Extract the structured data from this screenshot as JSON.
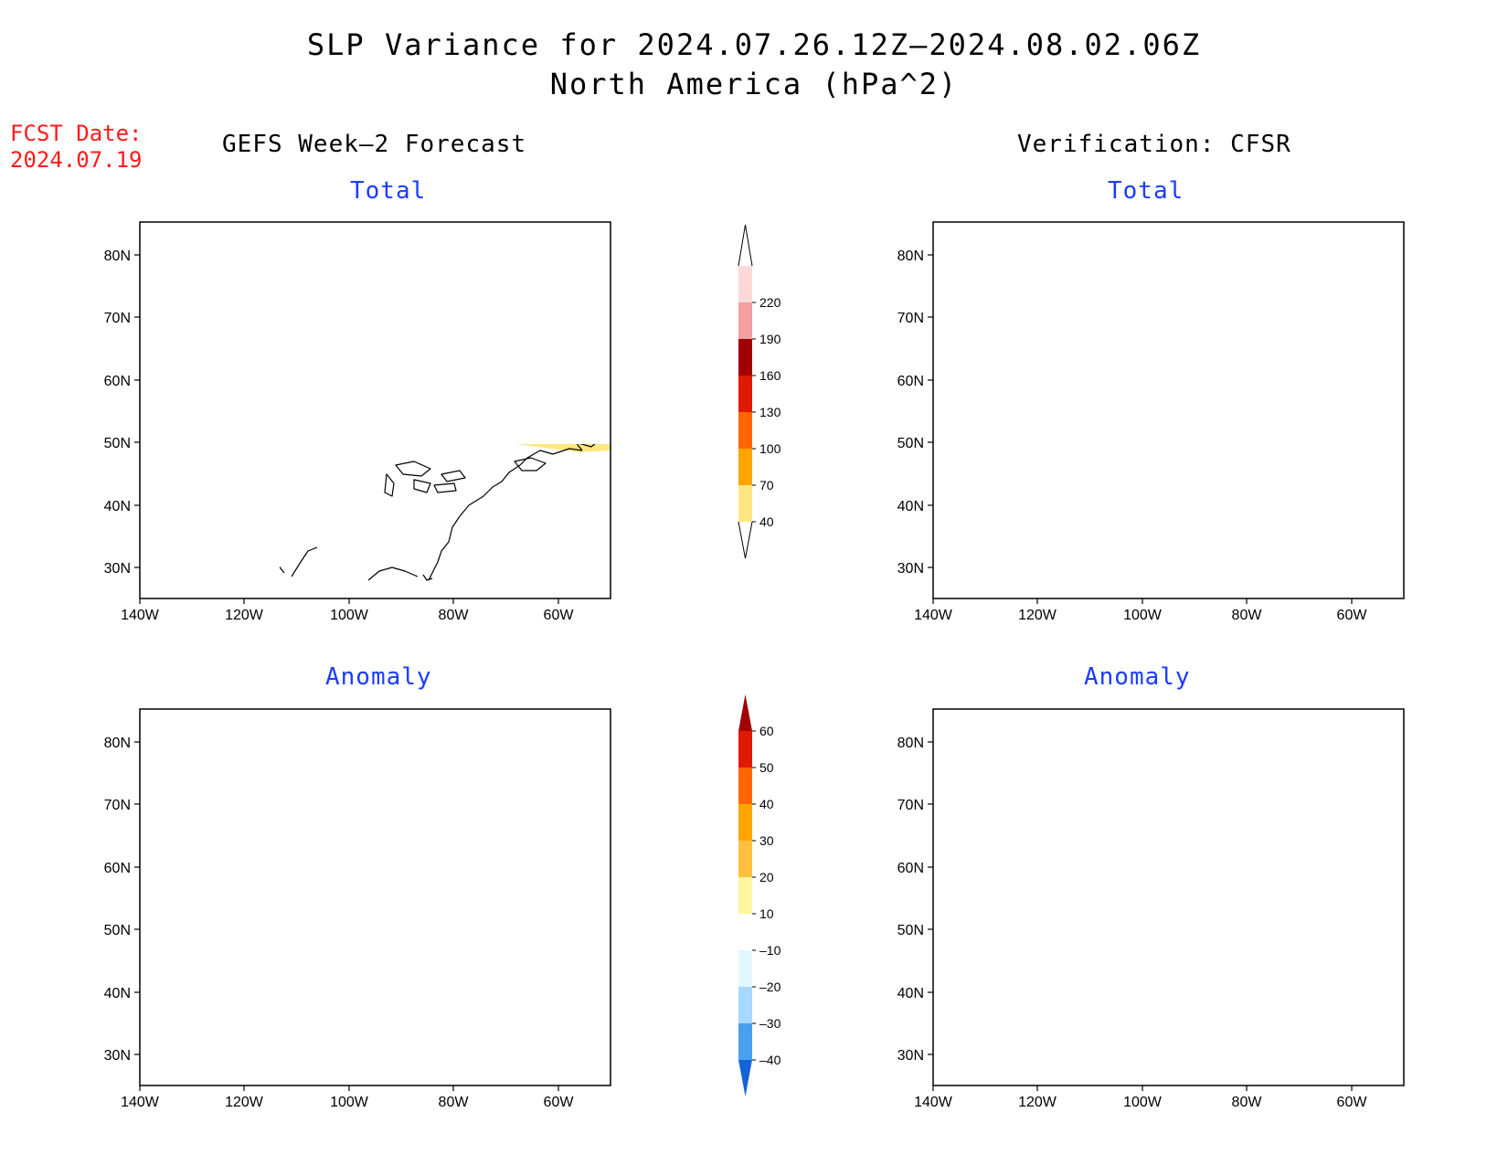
{
  "header": {
    "title_line1": "SLP Variance for 2024.07.26.12Z–2024.08.02.06Z",
    "title_line2": "North America (hPa^2)",
    "fcst_label": "FCST Date:",
    "fcst_date": "2024.07.19",
    "left_column": "GEFS Week–2 Forecast",
    "right_column": "Verification: CFSR"
  },
  "panels": [
    {
      "id": "gefs-total",
      "subtitle": "Total"
    },
    {
      "id": "cfsr-total",
      "subtitle": "Total"
    },
    {
      "id": "gefs-anomaly",
      "subtitle": "Anomaly"
    },
    {
      "id": "cfsr-anomaly",
      "subtitle": "Anomaly"
    }
  ],
  "axes": {
    "lon_ticks": [
      "140W",
      "120W",
      "100W",
      "80W",
      "60W"
    ],
    "lat_ticks": [
      "80N",
      "70N",
      "60N",
      "50N",
      "40N",
      "30N"
    ],
    "lon_range": [
      -140,
      -50
    ],
    "lat_range": [
      25,
      85
    ]
  },
  "colorbars": {
    "total": {
      "labels": [
        "40",
        "70",
        "100",
        "130",
        "160",
        "190",
        "220"
      ],
      "colors": [
        "#ffe680",
        "#ffa500",
        "#ff6600",
        "#e01a00",
        "#a00000",
        "#f2a0a0",
        "#fcd9d9"
      ]
    },
    "anomaly": {
      "labels": [
        "60",
        "50",
        "40",
        "30",
        "20",
        "10",
        "–10",
        "–20",
        "–30",
        "–40"
      ],
      "colors_top_down": [
        "#a00000",
        "#e01a00",
        "#ff6600",
        "#ffa500",
        "#ffc040",
        "#fff5a0",
        "#ffffff",
        "#e0f8ff",
        "#a8d8ff",
        "#4aa0f0",
        "#1464d8"
      ]
    }
  }
}
